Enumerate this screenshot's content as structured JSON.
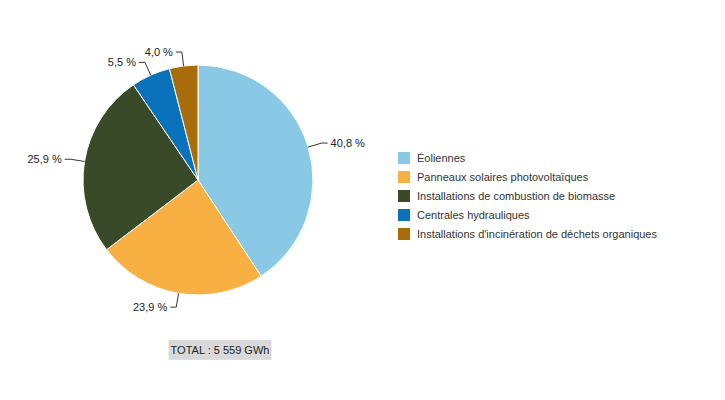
{
  "chart_data": {
    "type": "pie",
    "categories": [
      "Éoliennes",
      "Panneaux solaires photovoltaïques",
      "Installations de combustion de biomasse",
      "Centrales hydrauliques",
      "Installations d'incinération de déchets organiques"
    ],
    "values": [
      40.8,
      23.9,
      25.9,
      5.5,
      4.0
    ],
    "value_labels": [
      "40,8 %",
      "23,9 %",
      "25,9 %",
      "5,5 %",
      "4,0 %"
    ],
    "colors": [
      "#89c9e6",
      "#f9b043",
      "#384a28",
      "#0a72ba",
      "#a86c0b"
    ],
    "data_labels": true,
    "legend": "right",
    "annotations": [
      "TOTAL : 5 559 GWh"
    ]
  }
}
